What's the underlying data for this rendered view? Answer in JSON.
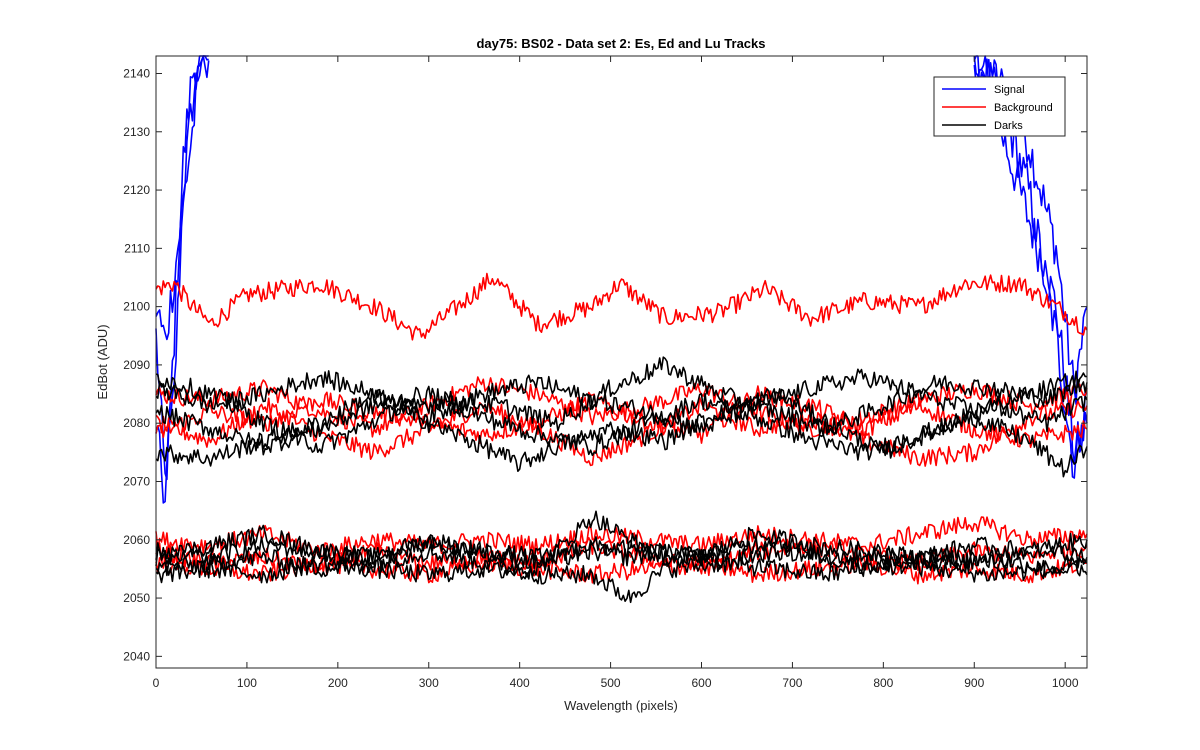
{
  "chart_data": {
    "type": "line",
    "title": "day75: BS02 - Data set 2: Es, Ed and Lu Tracks",
    "xlabel": "Wavelength (pixels)",
    "ylabel": "EdBot (ADU)",
    "xlim": [
      0,
      1024
    ],
    "ylim": [
      2038,
      2143
    ],
    "xticks": [
      0,
      100,
      200,
      300,
      400,
      500,
      600,
      700,
      800,
      900,
      1000
    ],
    "yticks": [
      2040,
      2050,
      2060,
      2070,
      2080,
      2090,
      2100,
      2110,
      2120,
      2130,
      2140
    ],
    "grid": false,
    "legend_position": "top-right",
    "legend": [
      {
        "name": "Signal",
        "color": "#0000ff"
      },
      {
        "name": "Background",
        "color": "#ff0000"
      },
      {
        "name": "Darks",
        "color": "#000000"
      }
    ],
    "series": [
      {
        "name": "Signal",
        "color": "#0000ff",
        "x": [
          0,
          10,
          20,
          30,
          40,
          50,
          60,
          900,
          930,
          960,
          990,
          1010,
          1024
        ],
        "y": [
          2095,
          2070,
          2085,
          2120,
          2135,
          2143,
          2143,
          2143,
          2138,
          2128,
          2110,
          2085,
          2100
        ]
      },
      {
        "name": "Signal",
        "color": "#0000ff",
        "x": [
          0,
          10,
          20,
          30,
          40,
          50,
          60,
          900,
          930,
          960,
          990,
          1010,
          1024
        ],
        "y": [
          2080,
          2066,
          2095,
          2125,
          2140,
          2143,
          2143,
          2143,
          2130,
          2115,
          2100,
          2075,
          2080
        ]
      },
      {
        "name": "Signal",
        "color": "#0000ff",
        "x": [
          0,
          10,
          20,
          30,
          40,
          50,
          60,
          900,
          930,
          960,
          990,
          1010,
          1024
        ],
        "y": [
          2100,
          2094,
          2105,
          2118,
          2130,
          2143,
          2143,
          2143,
          2135,
          2120,
          2095,
          2072,
          2085
        ]
      },
      {
        "name": "Background",
        "color": "#ff0000",
        "x": [
          0,
          20,
          40,
          60,
          100,
          180,
          240,
          290,
          340,
          370,
          420,
          480,
          510,
          560,
          620,
          670,
          720,
          780,
          840,
          890,
          950,
          1000,
          1024
        ],
        "y": [
          2103,
          2104,
          2100,
          2097,
          2102,
          2104,
          2100,
          2095,
          2101,
          2105,
          2097,
          2100,
          2104,
          2098,
          2099,
          2103,
          2098,
          2101,
          2100,
          2104,
          2104,
          2099,
          2096
        ]
      },
      {
        "name": "Background",
        "color": "#ff0000",
        "x": [
          0,
          60,
          120,
          180,
          240,
          300,
          360,
          420,
          480,
          540,
          600,
          660,
          720,
          780,
          840,
          900,
          960,
          1024
        ],
        "y": [
          2085,
          2084,
          2086,
          2082,
          2079,
          2083,
          2087,
          2085,
          2081,
          2083,
          2086,
          2082,
          2079,
          2081,
          2084,
          2086,
          2083,
          2086
        ]
      },
      {
        "name": "Background",
        "color": "#ff0000",
        "x": [
          0,
          60,
          120,
          180,
          240,
          300,
          360,
          420,
          480,
          540,
          600,
          660,
          720,
          780,
          840,
          900,
          960,
          1024
        ],
        "y": [
          2080,
          2077,
          2083,
          2078,
          2075,
          2079,
          2083,
          2079,
          2074,
          2078,
          2083,
          2079,
          2081,
          2077,
          2074,
          2075,
          2081,
          2083
        ]
      },
      {
        "name": "Background",
        "color": "#ff0000",
        "x": [
          0,
          60,
          120,
          180,
          240,
          300,
          360,
          420,
          480,
          540,
          600,
          660,
          720,
          780,
          840,
          900,
          960,
          1024
        ],
        "y": [
          2078,
          2082,
          2080,
          2084,
          2082,
          2080,
          2078,
          2080,
          2084,
          2080,
          2078,
          2085,
          2083,
          2079,
          2083,
          2079,
          2077,
          2079
        ]
      },
      {
        "name": "Background",
        "color": "#ff0000",
        "x": [
          0,
          60,
          120,
          180,
          240,
          300,
          360,
          420,
          480,
          540,
          600,
          660,
          720,
          780,
          840,
          900,
          960,
          1024
        ],
        "y": [
          2058,
          2056,
          2057,
          2055,
          2058,
          2056,
          2057,
          2056,
          2059,
          2057,
          2055,
          2058,
          2059,
          2057,
          2056,
          2058,
          2057,
          2059
        ]
      },
      {
        "name": "Background",
        "color": "#ff0000",
        "x": [
          0,
          60,
          120,
          180,
          240,
          300,
          360,
          420,
          480,
          540,
          600,
          660,
          720,
          780,
          840,
          900,
          960,
          1024
        ],
        "y": [
          2060,
          2059,
          2061,
          2058,
          2060,
          2059,
          2060,
          2059,
          2061,
          2060,
          2059,
          2061,
          2060,
          2059,
          2061,
          2063,
          2060,
          2061
        ]
      },
      {
        "name": "Background",
        "color": "#ff0000",
        "x": [
          0,
          60,
          120,
          180,
          240,
          300,
          360,
          420,
          480,
          540,
          600,
          660,
          720,
          780,
          840,
          900,
          960,
          1024
        ],
        "y": [
          2056,
          2055,
          2054,
          2056,
          2055,
          2054,
          2056,
          2055,
          2054,
          2055,
          2056,
          2054,
          2055,
          2056,
          2054,
          2055,
          2054,
          2056
        ]
      },
      {
        "name": "Darks",
        "color": "#000000",
        "x": [
          0,
          60,
          120,
          180,
          210,
          260,
          320,
          380,
          440,
          500,
          560,
          620,
          680,
          740,
          800,
          860,
          920,
          980,
          1024
        ],
        "y": [
          2088,
          2085,
          2080,
          2076,
          2078,
          2082,
          2084,
          2083,
          2080,
          2086,
          2090,
          2085,
          2082,
          2079,
          2083,
          2087,
          2086,
          2084,
          2087
        ]
      },
      {
        "name": "Darks",
        "color": "#000000",
        "x": [
          0,
          60,
          120,
          180,
          240,
          300,
          360,
          400,
          440,
          500,
          560,
          620,
          680,
          740,
          800,
          860,
          920,
          980,
          1024
        ],
        "y": [
          2075,
          2074,
          2077,
          2080,
          2085,
          2080,
          2076,
          2073,
          2076,
          2079,
          2077,
          2082,
          2085,
          2080,
          2075,
          2079,
          2083,
          2080,
          2084
        ]
      },
      {
        "name": "Darks",
        "color": "#000000",
        "x": [
          0,
          60,
          120,
          180,
          240,
          300,
          360,
          420,
          480,
          540,
          600,
          660,
          720,
          780,
          840,
          900,
          960,
          1000,
          1024
        ],
        "y": [
          2082,
          2079,
          2076,
          2079,
          2083,
          2085,
          2081,
          2078,
          2076,
          2080,
          2084,
          2081,
          2077,
          2075,
          2078,
          2081,
          2077,
          2072,
          2076
        ]
      },
      {
        "name": "Darks",
        "color": "#000000",
        "x": [
          0,
          60,
          120,
          180,
          240,
          300,
          360,
          420,
          480,
          540,
          600,
          660,
          720,
          780,
          840,
          900,
          960,
          1024
        ],
        "y": [
          2086,
          2083,
          2085,
          2088,
          2085,
          2081,
          2085,
          2087,
          2084,
          2082,
          2079,
          2083,
          2086,
          2088,
          2085,
          2082,
          2085,
          2088
        ]
      },
      {
        "name": "Darks",
        "color": "#000000",
        "x": [
          0,
          60,
          120,
          180,
          240,
          300,
          360,
          420,
          480,
          520,
          560,
          620,
          680,
          740,
          800,
          860,
          920,
          980,
          1024
        ],
        "y": [
          2057,
          2059,
          2061,
          2058,
          2057,
          2060,
          2058,
          2056,
          2058,
          2057,
          2058,
          2056,
          2058,
          2057,
          2055,
          2057,
          2056,
          2058,
          2057
        ]
      },
      {
        "name": "Darks",
        "color": "#000000",
        "x": [
          0,
          60,
          120,
          180,
          240,
          300,
          360,
          420,
          480,
          520,
          560,
          620,
          680,
          740,
          800,
          860,
          920,
          980,
          1024
        ],
        "y": [
          2055,
          2056,
          2057,
          2055,
          2056,
          2058,
          2056,
          2055,
          2064,
          2060,
          2057,
          2058,
          2060,
          2057,
          2058,
          2056,
          2057,
          2055,
          2056
        ]
      },
      {
        "name": "Darks",
        "color": "#000000",
        "x": [
          0,
          60,
          120,
          180,
          240,
          300,
          360,
          420,
          480,
          520,
          560,
          620,
          680,
          740,
          800,
          860,
          920,
          980,
          1024
        ],
        "y": [
          2054,
          2055,
          2054,
          2056,
          2055,
          2054,
          2055,
          2054,
          2054,
          2050,
          2055,
          2056,
          2055,
          2054,
          2056,
          2055,
          2054,
          2055,
          2054
        ]
      },
      {
        "name": "Darks",
        "color": "#000000",
        "x": [
          0,
          60,
          120,
          180,
          240,
          300,
          360,
          420,
          480,
          540,
          600,
          660,
          720,
          780,
          840,
          900,
          960,
          1024
        ],
        "y": [
          2058,
          2057,
          2059,
          2058,
          2057,
          2059,
          2058,
          2057,
          2059,
          2058,
          2057,
          2061,
          2059,
          2058,
          2057,
          2059,
          2058,
          2060
        ]
      }
    ]
  }
}
